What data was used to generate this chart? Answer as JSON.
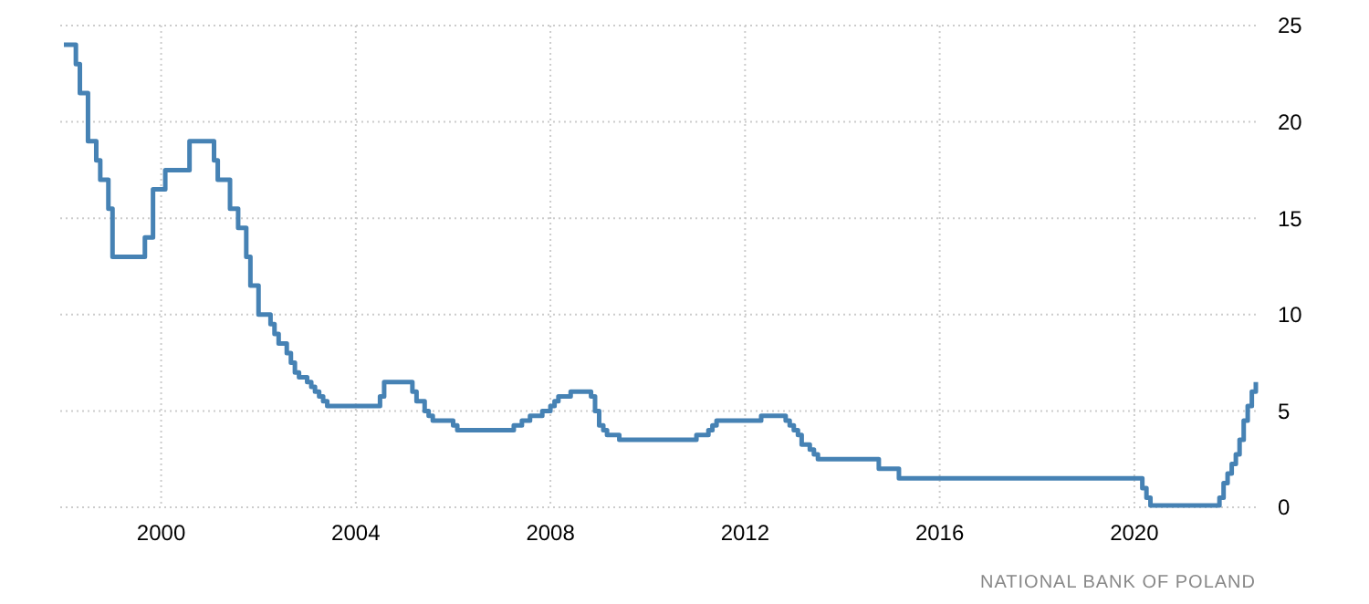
{
  "chart_data": {
    "type": "step",
    "x": [
      "1998-01",
      "1998-03",
      "1998-04",
      "1998-05",
      "1998-07",
      "1998-09",
      "1998-10",
      "1998-12",
      "1999-01",
      "1999-09",
      "1999-11",
      "2000-02",
      "2000-08",
      "2001-02",
      "2001-03",
      "2001-06",
      "2001-08",
      "2001-10",
      "2001-11",
      "2002-01",
      "2002-04",
      "2002-05",
      "2002-06",
      "2002-08",
      "2002-09",
      "2002-10",
      "2002-11",
      "2003-01",
      "2003-02",
      "2003-03",
      "2003-04",
      "2003-05",
      "2003-06",
      "2004-07",
      "2004-08",
      "2005-03",
      "2005-04",
      "2005-06",
      "2005-07",
      "2005-08",
      "2006-01",
      "2006-02",
      "2007-04",
      "2007-06",
      "2007-08",
      "2007-11",
      "2008-01",
      "2008-02",
      "2008-03",
      "2008-06",
      "2008-11",
      "2008-12",
      "2009-01",
      "2009-02",
      "2009-03",
      "2009-06",
      "2011-01",
      "2011-04",
      "2011-05",
      "2011-06",
      "2012-05",
      "2012-11",
      "2012-12",
      "2013-01",
      "2013-02",
      "2013-03",
      "2013-05",
      "2013-06",
      "2013-07",
      "2014-10",
      "2015-03",
      "2020-03",
      "2020-04",
      "2020-05",
      "2021-10",
      "2021-11",
      "2021-12",
      "2022-01",
      "2022-02",
      "2022-03",
      "2022-04",
      "2022-05",
      "2022-06",
      "2022-07"
    ],
    "series": [
      {
        "color": "#4682b4",
        "values": [
          24,
          24,
          23,
          21.5,
          19,
          18,
          17,
          15.5,
          13,
          14,
          16.5,
          17.5,
          19,
          18,
          17,
          15.5,
          14.5,
          13,
          11.5,
          10,
          9.5,
          9,
          8.5,
          8,
          7.5,
          7,
          6.75,
          6.5,
          6.25,
          6,
          5.75,
          5.5,
          5.25,
          5.75,
          6.5,
          6,
          5.5,
          5,
          4.75,
          4.5,
          4.25,
          4,
          4.25,
          4.5,
          4.75,
          5,
          5.25,
          5.5,
          5.75,
          6,
          5.75,
          5,
          4.25,
          4,
          3.75,
          3.5,
          3.75,
          4,
          4.25,
          4.5,
          4.75,
          4.5,
          4.25,
          4,
          3.75,
          3.25,
          3,
          2.75,
          2.5,
          2,
          1.5,
          1,
          0.5,
          0.1,
          0.5,
          1.25,
          1.75,
          2.25,
          2.75,
          3.5,
          4.5,
          5.25,
          6,
          6.5
        ]
      }
    ],
    "xlim": [
      "1998-01",
      "2022-07"
    ],
    "ylim": [
      0,
      25
    ],
    "xticks": [
      {
        "value": "2000",
        "label": "2000"
      },
      {
        "value": "2004",
        "label": "2004"
      },
      {
        "value": "2008",
        "label": "2008"
      },
      {
        "value": "2012",
        "label": "2012"
      },
      {
        "value": "2016",
        "label": "2016"
      },
      {
        "value": "2020",
        "label": "2020"
      }
    ],
    "yticks": [
      0,
      5,
      10,
      15,
      20,
      25
    ],
    "grid": true,
    "annotations": [
      "NATIONAL BANK OF POLAND"
    ]
  }
}
